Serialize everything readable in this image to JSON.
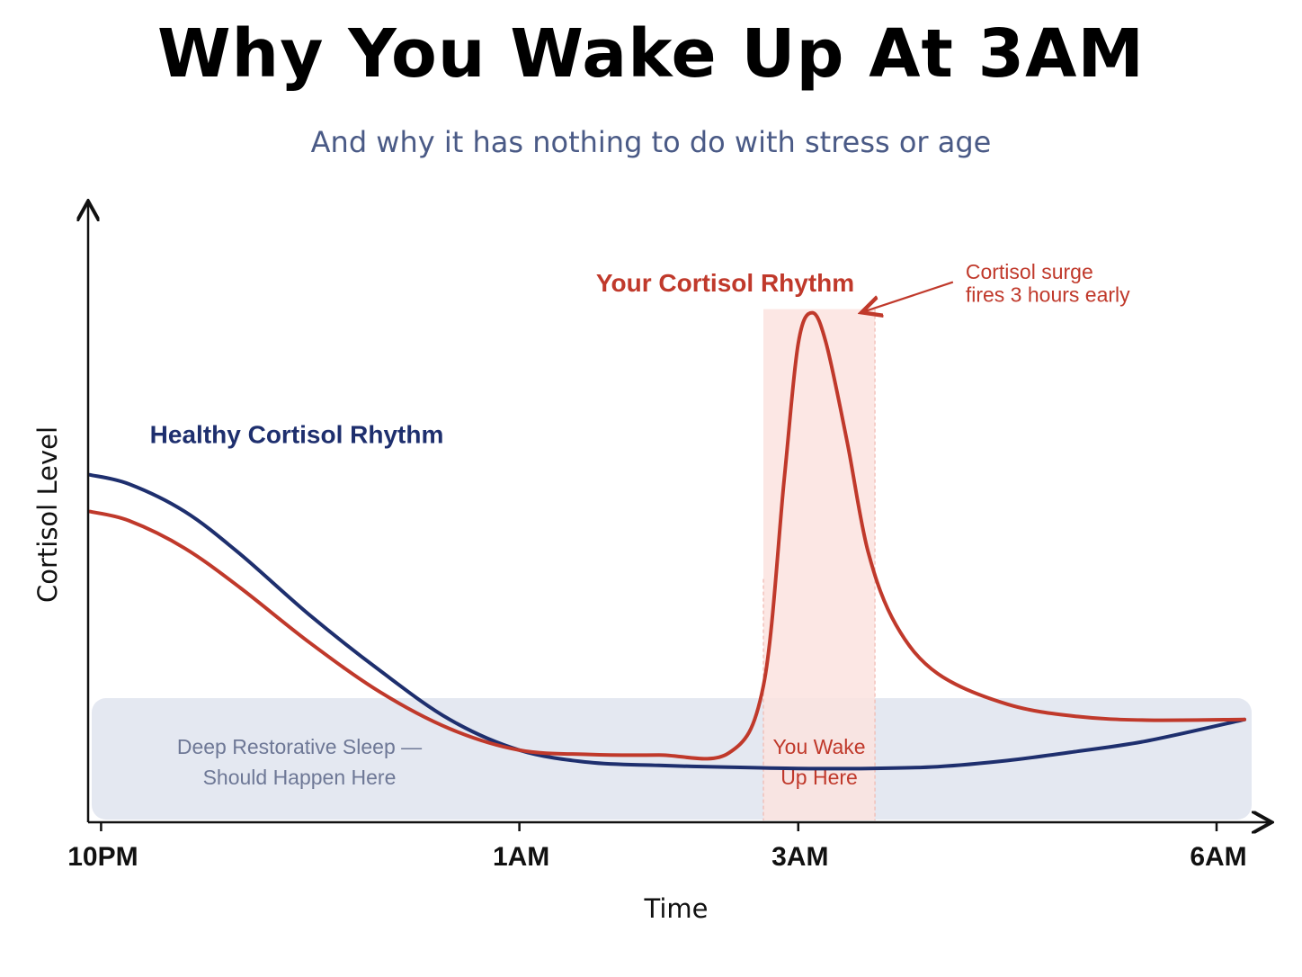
{
  "title": "Why You Wake Up At 3AM",
  "subtitle": "And why it has nothing to do with stress or age",
  "colors": {
    "healthy": "#1e2f6e",
    "yours": "#c0392b",
    "band_fill": "#e4e8f1",
    "band_text": "#6e7896",
    "wake_fill": "#fbe3df",
    "wake_text": "#c0392b"
  },
  "chart_data": {
    "type": "line",
    "title": "Why You Wake Up At 3AM",
    "subtitle": "And why it has nothing to do with stress or age",
    "xlabel": "Time",
    "ylabel": "Cortisol Level",
    "x_ticks": [
      "10PM",
      "1AM",
      "3AM",
      "6AM"
    ],
    "x_tick_hours": [
      0,
      3,
      5,
      8
    ],
    "xlim": [
      -0.08,
      8.2
    ],
    "ylim": [
      0,
      100
    ],
    "grid": false,
    "series": [
      {
        "name": "Healthy Cortisol Rhythm",
        "color": "#1e2f6e",
        "x": [
          -0.08,
          0.2,
          0.6,
          1.0,
          1.5,
          2.0,
          2.5,
          3.0,
          3.5,
          4.0,
          4.5,
          5.0,
          5.5,
          6.0,
          6.5,
          7.0,
          7.5,
          8.2
        ],
        "y": [
          56.5,
          55.0,
          50.5,
          43.5,
          33.5,
          24.5,
          16.5,
          11.5,
          9.5,
          9.0,
          8.7,
          8.5,
          8.5,
          8.8,
          9.8,
          11.3,
          13.0,
          16.5
        ]
      },
      {
        "name": "Your Cortisol Rhythm",
        "color": "#c0392b",
        "x": [
          -0.08,
          0.2,
          0.6,
          1.0,
          1.5,
          2.0,
          2.5,
          3.0,
          3.5,
          4.0,
          4.5,
          4.75,
          4.9,
          5.0,
          5.1,
          5.2,
          5.35,
          5.5,
          5.7,
          6.0,
          6.5,
          7.0,
          7.5,
          8.2
        ],
        "y": [
          50.5,
          49.0,
          44.5,
          38.0,
          29.0,
          21.0,
          15.0,
          11.5,
          10.8,
          10.7,
          11.0,
          22.0,
          56.0,
          78.0,
          83.0,
          78.0,
          62.0,
          44.0,
          32.0,
          24.0,
          19.0,
          17.0,
          16.4,
          16.5
        ]
      }
    ],
    "series_labels": [
      "Healthy Cortisol Rhythm",
      "Your Cortisol Rhythm"
    ],
    "annotations": {
      "surge_line1": "Cortisol surge",
      "surge_line2": "fires 3 hours early",
      "band_line1": "Deep Restorative Sleep —",
      "band_line2": "Should Happen Here",
      "wake_line1": "You Wake",
      "wake_line2": "Up Here"
    },
    "deep_sleep_band": {
      "x_start": -0.08,
      "x_end": 8.2,
      "y_from": 0,
      "y_to": 20
    },
    "wake_zone": {
      "x_start": 4.75,
      "x_end": 5.55
    },
    "peak_arrow_target": {
      "x": 5.3,
      "y": 83
    }
  }
}
